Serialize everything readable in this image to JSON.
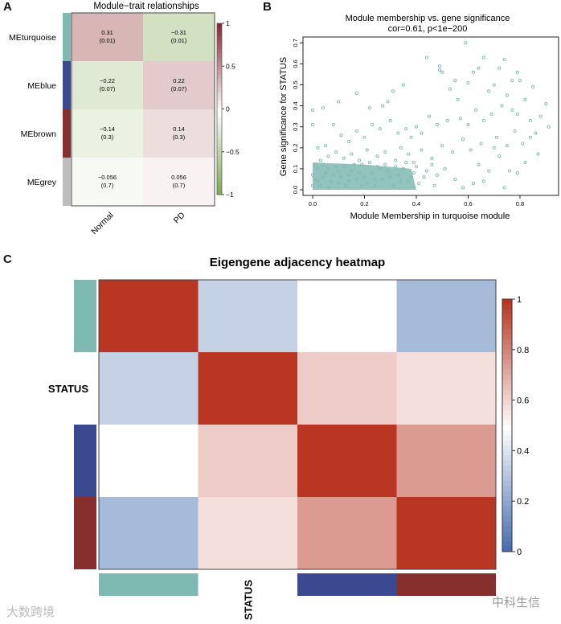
{
  "panels": {
    "a": "A",
    "b": "B",
    "c": "C"
  },
  "chart_data": [
    {
      "type": "heatmap",
      "title": "Module−trait relationships",
      "rows": [
        "MEturquoise",
        "MEblue",
        "MEbrown",
        "MEgrey"
      ],
      "row_colors": [
        "#7fbab2",
        "#3a4990",
        "#862f2c",
        "#bdbdbd"
      ],
      "columns": [
        "Normal",
        "PD"
      ],
      "values": [
        [
          0.31,
          -0.31
        ],
        [
          -0.22,
          0.22
        ],
        [
          -0.14,
          0.14
        ],
        [
          -0.056,
          0.056
        ]
      ],
      "labels": [
        [
          "0.31",
          "−0.31"
        ],
        [
          "−0.22",
          "0.22"
        ],
        [
          "−0.14",
          "0.14"
        ],
        [
          "−0.056",
          "0.056"
        ]
      ],
      "pvalues": [
        [
          "(0.01)",
          "(0.01)"
        ],
        [
          "(0.07)",
          "(0.07)"
        ],
        [
          "(0.3)",
          "(0.3)"
        ],
        [
          "(0.7)",
          "(0.7)"
        ]
      ],
      "colorbar": {
        "range": [
          -1,
          1
        ],
        "ticks": [
          "1",
          "0.5",
          "0",
          "−0.5",
          "−1"
        ],
        "low": "#7aa64a",
        "mid": "#ffffff",
        "high": "#8c2a2a"
      }
    },
    {
      "type": "scatter",
      "title": "Module membership vs. gene significance",
      "subtitle": "cor=0.61, p<1e−200",
      "xlabel": "Module Membership in turquoise module",
      "ylabel": "Gene significance for STATUS",
      "xlim": [
        -0.03,
        0.95
      ],
      "ylim": [
        -0.01,
        0.72
      ],
      "xticks": [
        "0.0",
        "0.2",
        "0.4",
        "0.6",
        "0.8"
      ],
      "yticks": [
        "0.0",
        "0.1",
        "0.2",
        "0.3",
        "0.4",
        "0.5",
        "0.6",
        "0.7"
      ],
      "color": "#7fbab2",
      "points": [
        [
          0.0,
          0.38
        ],
        [
          0.0,
          0.31
        ],
        [
          0.04,
          0.39
        ],
        [
          0.1,
          0.42
        ],
        [
          0.17,
          0.46
        ],
        [
          0.35,
          0.5
        ],
        [
          0.31,
          0.47
        ],
        [
          0.29,
          0.42
        ],
        [
          0.22,
          0.39
        ],
        [
          0.27,
          0.4
        ],
        [
          0.44,
          0.63
        ],
        [
          0.49,
          0.59
        ],
        [
          0.49,
          0.57
        ],
        [
          0.5,
          0.56
        ],
        [
          0.59,
          0.7
        ],
        [
          0.66,
          0.63
        ],
        [
          0.74,
          0.62
        ],
        [
          0.64,
          0.58
        ],
        [
          0.62,
          0.56
        ],
        [
          0.72,
          0.58
        ],
        [
          0.79,
          0.56
        ],
        [
          0.77,
          0.52
        ],
        [
          0.8,
          0.52
        ],
        [
          0.85,
          0.49
        ],
        [
          0.6,
          0.51
        ],
        [
          0.53,
          0.48
        ],
        [
          0.55,
          0.52
        ],
        [
          0.56,
          0.43
        ],
        [
          0.68,
          0.47
        ],
        [
          0.7,
          0.5
        ],
        [
          0.75,
          0.45
        ],
        [
          0.82,
          0.43
        ],
        [
          0.9,
          0.41
        ],
        [
          0.88,
          0.35
        ],
        [
          0.91,
          0.3
        ],
        [
          0.86,
          0.27
        ],
        [
          0.84,
          0.33
        ],
        [
          0.79,
          0.36
        ],
        [
          0.77,
          0.38
        ],
        [
          0.73,
          0.4
        ],
        [
          0.69,
          0.36
        ],
        [
          0.66,
          0.33
        ],
        [
          0.63,
          0.38
        ],
        [
          0.6,
          0.31
        ],
        [
          0.57,
          0.34
        ],
        [
          0.52,
          0.33
        ],
        [
          0.48,
          0.31
        ],
        [
          0.45,
          0.35
        ],
        [
          0.42,
          0.27
        ],
        [
          0.4,
          0.3
        ],
        [
          0.38,
          0.25
        ],
        [
          0.36,
          0.29
        ],
        [
          0.33,
          0.27
        ],
        [
          0.3,
          0.33
        ],
        [
          0.26,
          0.29
        ],
        [
          0.23,
          0.31
        ],
        [
          0.2,
          0.25
        ],
        [
          0.17,
          0.28
        ],
        [
          0.14,
          0.23
        ],
        [
          0.11,
          0.26
        ],
        [
          0.08,
          0.31
        ],
        [
          0.05,
          0.21
        ],
        [
          0.02,
          0.2
        ],
        [
          0.7,
          0.2
        ],
        [
          0.72,
          0.16
        ],
        [
          0.76,
          0.09
        ],
        [
          0.74,
          0.01
        ],
        [
          0.79,
          0.08
        ],
        [
          0.82,
          0.13
        ],
        [
          0.87,
          0.17
        ],
        [
          0.66,
          0.04
        ],
        [
          0.62,
          0.03
        ],
        [
          0.58,
          0.01
        ],
        [
          0.55,
          0.05
        ],
        [
          0.51,
          0.1
        ],
        [
          0.47,
          0.02
        ],
        [
          0.43,
          0.06
        ],
        [
          0.64,
          0.12
        ],
        [
          0.68,
          0.09
        ],
        [
          0.71,
          0.25
        ],
        [
          0.75,
          0.21
        ],
        [
          0.81,
          0.22
        ],
        [
          0.84,
          0.25
        ],
        [
          0.78,
          0.28
        ],
        [
          0.65,
          0.22
        ],
        [
          0.61,
          0.19
        ],
        [
          0.58,
          0.24
        ],
        [
          0.54,
          0.18
        ],
        [
          0.5,
          0.21
        ],
        [
          0.46,
          0.15
        ],
        [
          0.42,
          0.19
        ],
        [
          0.39,
          0.13
        ],
        [
          0.37,
          0.17
        ],
        [
          0.34,
          0.2
        ],
        [
          0.32,
          0.14
        ],
        [
          0.28,
          0.18
        ],
        [
          0.25,
          0.16
        ],
        [
          0.21,
          0.19
        ],
        [
          0.18,
          0.14
        ],
        [
          0.15,
          0.17
        ],
        [
          0.12,
          0.15
        ],
        [
          0.09,
          0.18
        ],
        [
          0.06,
          0.16
        ],
        [
          0.03,
          0.14
        ],
        [
          0.01,
          0.05
        ],
        [
          0.03,
          0.02
        ],
        [
          0.05,
          0.08
        ],
        [
          0.07,
          0.04
        ],
        [
          0.09,
          0.11
        ],
        [
          0.11,
          0.06
        ],
        [
          0.13,
          0.02
        ],
        [
          0.15,
          0.09
        ],
        [
          0.17,
          0.05
        ],
        [
          0.19,
          0.12
        ],
        [
          0.21,
          0.03
        ],
        [
          0.23,
          0.08
        ],
        [
          0.25,
          0.11
        ],
        [
          0.27,
          0.05
        ],
        [
          0.29,
          0.09
        ],
        [
          0.31,
          0.02
        ],
        [
          0.33,
          0.07
        ],
        [
          0.35,
          0.1
        ],
        [
          0.37,
          0.04
        ],
        [
          0.39,
          0.08
        ],
        [
          0.41,
          0.03
        ],
        [
          0.02,
          0.1
        ],
        [
          0.04,
          0.12
        ],
        [
          0.06,
          0.01
        ],
        [
          0.08,
          0.07
        ],
        [
          0.1,
          0.09
        ],
        [
          0.12,
          0.11
        ],
        [
          0.14,
          0.04
        ],
        [
          0.16,
          0.12
        ],
        [
          0.18,
          0.08
        ],
        [
          0.2,
          0.06
        ],
        [
          0.22,
          0.13
        ],
        [
          0.24,
          0.02
        ],
        [
          0.26,
          0.1
        ],
        [
          0.28,
          0.12
        ],
        [
          0.3,
          0.06
        ],
        [
          0.32,
          0.11
        ],
        [
          0.34,
          0.04
        ],
        [
          0.36,
          0.13
        ],
        [
          0.38,
          0.06
        ],
        [
          0.4,
          0.11
        ],
        [
          0.0,
          0.02
        ],
        [
          0.0,
          0.07
        ],
        [
          0.01,
          0.12
        ],
        [
          0.02,
          0.04
        ],
        [
          0.04,
          0.06
        ],
        [
          0.06,
          0.1
        ],
        [
          0.1,
          0.03
        ],
        [
          0.14,
          0.07
        ],
        [
          0.19,
          0.02
        ],
        [
          0.24,
          0.05
        ],
        [
          0.44,
          0.09
        ],
        [
          0.46,
          0.12
        ],
        [
          0.48,
          0.07
        ]
      ]
    },
    {
      "type": "heatmap",
      "title": "Eigengene adjacency heatmap",
      "rows": [
        "",
        "STATUS",
        "",
        ""
      ],
      "row_colors": [
        "#7fbab2",
        "",
        "#3a4990",
        "#862f2c"
      ],
      "columns": [
        "",
        "STATUS",
        "",
        ""
      ],
      "values": [
        [
          1,
          0.35,
          0.5,
          0.27
        ],
        [
          0.35,
          1,
          0.63,
          0.58
        ],
        [
          0.5,
          0.63,
          1,
          0.75
        ],
        [
          0.27,
          0.58,
          0.75,
          1
        ]
      ],
      "colorbar": {
        "range": [
          0,
          1
        ],
        "ticks": [
          "1",
          "0.8",
          "0.6",
          "0.4",
          "0.2",
          "0"
        ],
        "low": "#3e68ad",
        "mid": "#ffffff",
        "high": "#b93623"
      }
    }
  ],
  "watermarks": {
    "left": "大数跨境",
    "right": "中科生信"
  }
}
